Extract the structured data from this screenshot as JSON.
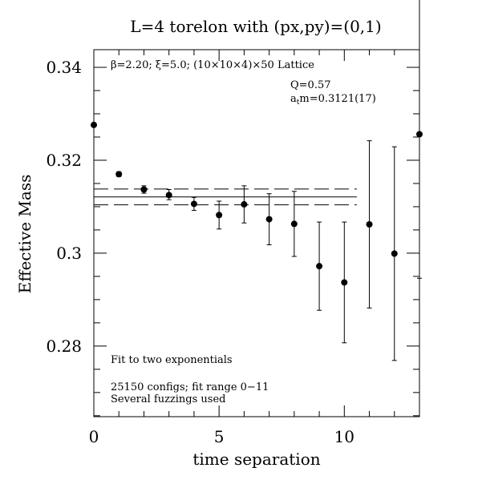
{
  "chart_data": {
    "type": "scatter",
    "title": "L=4 torelon with (px,py)=(0,1)",
    "xlabel": "time separation",
    "ylabel": "Effective Mass",
    "xlim": [
      0,
      13
    ],
    "ylim": [
      0.2648,
      0.3438
    ],
    "x_ticks": [
      0,
      5,
      10
    ],
    "x_tick_labels": [
      "0",
      "5",
      "10"
    ],
    "x_minor_step": 1,
    "y_ticks": [
      0.28,
      0.3,
      0.32,
      0.34
    ],
    "y_tick_labels": [
      "0.28",
      "0.3",
      "0.32",
      "0.34"
    ],
    "y_minor_step": 0.005,
    "grid": false,
    "series": [
      {
        "x": [
          0,
          1,
          2,
          3,
          4,
          5,
          6,
          7,
          8,
          9,
          10,
          11,
          12,
          13
        ],
        "y": [
          0.3276,
          0.317,
          0.3137,
          0.3125,
          0.3106,
          0.3082,
          0.3105,
          0.3073,
          0.3063,
          0.2972,
          0.2937,
          0.3062,
          0.2999,
          0.3256
        ],
        "yerr_low": [
          0.0,
          0.0005,
          0.0008,
          0.001,
          0.0014,
          0.003,
          0.004,
          0.0055,
          0.007,
          0.0095,
          0.013,
          0.018,
          0.023,
          0.031
        ],
        "yerr_high": [
          0.0,
          0.0005,
          0.0008,
          0.0012,
          0.0014,
          0.003,
          0.004,
          0.0055,
          0.007,
          0.0095,
          0.013,
          0.018,
          0.023,
          0.031
        ]
      }
    ],
    "fit": {
      "central": 0.3121,
      "error": 0.0017,
      "x_range": [
        0,
        10.5
      ]
    },
    "annotations": {
      "lattice": "β=2.20; ξ=5.0; (10×10×4)×50 Lattice",
      "q_value": "Q=0.57",
      "mass_prefix": "a",
      "mass_subscript": "t",
      "mass_suffix": "m=0.3121(17)",
      "fit_method": "Fit to two exponentials",
      "configs": "25150 configs; fit range 0−11",
      "fuzzing": "Several fuzzings used"
    }
  }
}
